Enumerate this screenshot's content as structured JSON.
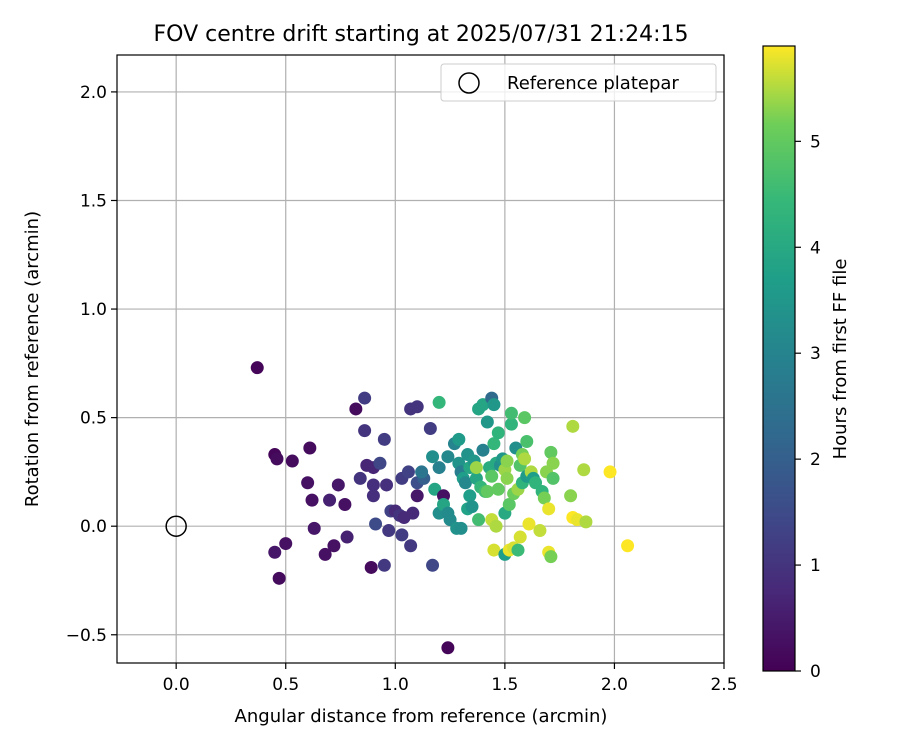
{
  "chart_data": {
    "type": "scatter",
    "title": "FOV centre drift starting at 2025/07/31 21:24:15",
    "xlabel": "Angular distance from reference (arcmin)",
    "ylabel": "Rotation from reference (arcmin)",
    "xlim": [
      -0.27,
      2.5
    ],
    "ylim": [
      -0.63,
      2.17
    ],
    "xticks": [
      0.0,
      0.5,
      1.0,
      1.5,
      2.0,
      2.5
    ],
    "xtick_labels": [
      "0.0",
      "0.5",
      "1.0",
      "1.5",
      "2.0",
      "2.5"
    ],
    "yticks": [
      -0.5,
      0.0,
      0.5,
      1.0,
      1.5,
      2.0
    ],
    "ytick_labels": [
      "−0.5",
      "0.0",
      "0.5",
      "1.0",
      "1.5",
      "2.0"
    ],
    "grid": true,
    "legend": {
      "position": "top-right",
      "entries": [
        "Reference platepar"
      ]
    },
    "reference_point": {
      "x": 0.0,
      "y": 0.0
    },
    "colorbar": {
      "label": "Hours from first FF file",
      "colormap": "viridis",
      "range": [
        0,
        5.9
      ],
      "ticks": [
        0,
        1,
        2,
        3,
        4,
        5
      ],
      "tick_labels": [
        "0",
        "1",
        "2",
        "3",
        "4",
        "5"
      ]
    },
    "points": [
      {
        "x": 0.37,
        "y": 0.73,
        "c": 0.1
      },
      {
        "x": 0.45,
        "y": 0.33,
        "c": 0.1
      },
      {
        "x": 0.46,
        "y": 0.31,
        "c": 0.2
      },
      {
        "x": 0.53,
        "y": 0.3,
        "c": 0.2
      },
      {
        "x": 0.61,
        "y": 0.36,
        "c": 0.2
      },
      {
        "x": 0.6,
        "y": 0.2,
        "c": 0.3
      },
      {
        "x": 0.62,
        "y": 0.12,
        "c": 0.3
      },
      {
        "x": 0.45,
        "y": -0.12,
        "c": 0.4
      },
      {
        "x": 0.5,
        "y": -0.08,
        "c": 0.3
      },
      {
        "x": 0.47,
        "y": -0.24,
        "c": 0.2
      },
      {
        "x": 0.63,
        "y": -0.01,
        "c": 0.4
      },
      {
        "x": 0.68,
        "y": -0.13,
        "c": 0.3
      },
      {
        "x": 0.72,
        "y": -0.09,
        "c": 0.3
      },
      {
        "x": 0.7,
        "y": 0.12,
        "c": 0.6
      },
      {
        "x": 0.74,
        "y": 0.19,
        "c": 0.4
      },
      {
        "x": 0.77,
        "y": 0.1,
        "c": 0.3
      },
      {
        "x": 0.78,
        "y": -0.05,
        "c": 0.6
      },
      {
        "x": 0.89,
        "y": -0.19,
        "c": 0.2
      },
      {
        "x": 0.82,
        "y": 0.54,
        "c": 0.2
      },
      {
        "x": 0.86,
        "y": 0.59,
        "c": 1.2
      },
      {
        "x": 0.86,
        "y": 0.44,
        "c": 1.0
      },
      {
        "x": 0.87,
        "y": 0.28,
        "c": 0.7
      },
      {
        "x": 0.84,
        "y": 0.22,
        "c": 1.0
      },
      {
        "x": 0.9,
        "y": 0.27,
        "c": 0.7
      },
      {
        "x": 0.9,
        "y": 0.19,
        "c": 0.9
      },
      {
        "x": 0.9,
        "y": 0.14,
        "c": 0.9
      },
      {
        "x": 0.91,
        "y": 0.01,
        "c": 1.5
      },
      {
        "x": 0.93,
        "y": 0.29,
        "c": 1.4
      },
      {
        "x": 0.95,
        "y": 0.4,
        "c": 1.2
      },
      {
        "x": 0.95,
        "y": -0.18,
        "c": 1.1
      },
      {
        "x": 0.96,
        "y": 0.19,
        "c": 0.9
      },
      {
        "x": 0.98,
        "y": 0.07,
        "c": 1.3
      },
      {
        "x": 1.0,
        "y": 0.07,
        "c": 0.8
      },
      {
        "x": 1.02,
        "y": 0.05,
        "c": 1.0
      },
      {
        "x": 1.03,
        "y": 0.22,
        "c": 1.2
      },
      {
        "x": 1.04,
        "y": 0.04,
        "c": 0.8
      },
      {
        "x": 1.07,
        "y": 0.54,
        "c": 1.0
      },
      {
        "x": 1.1,
        "y": 0.55,
        "c": 1.0
      },
      {
        "x": 1.07,
        "y": -0.09,
        "c": 1.1
      },
      {
        "x": 1.08,
        "y": 0.06,
        "c": 0.8
      },
      {
        "x": 1.1,
        "y": 0.14,
        "c": 0.4
      },
      {
        "x": 1.1,
        "y": 0.2,
        "c": 1.6
      },
      {
        "x": 1.13,
        "y": 0.22,
        "c": 2.0
      },
      {
        "x": 1.16,
        "y": 0.45,
        "c": 1.2
      },
      {
        "x": 1.17,
        "y": -0.18,
        "c": 1.4
      },
      {
        "x": 1.12,
        "y": 0.25,
        "c": 2.6
      },
      {
        "x": 1.17,
        "y": 0.32,
        "c": 3.3
      },
      {
        "x": 1.18,
        "y": 0.17,
        "c": 3.9
      },
      {
        "x": 1.2,
        "y": 0.27,
        "c": 2.9
      },
      {
        "x": 1.2,
        "y": 0.57,
        "c": 4.4
      },
      {
        "x": 1.2,
        "y": 0.06,
        "c": 3.3
      },
      {
        "x": 1.22,
        "y": 0.14,
        "c": 0.3
      },
      {
        "x": 1.22,
        "y": 0.1,
        "c": 3.9
      },
      {
        "x": 1.24,
        "y": 0.06,
        "c": 3.2
      },
      {
        "x": 1.24,
        "y": 0.32,
        "c": 3.1
      },
      {
        "x": 1.25,
        "y": 0.03,
        "c": 3.2
      },
      {
        "x": 1.27,
        "y": 0.38,
        "c": 3.0
      },
      {
        "x": 1.29,
        "y": 0.4,
        "c": 3.6
      },
      {
        "x": 1.29,
        "y": 0.29,
        "c": 3.4
      },
      {
        "x": 1.28,
        "y": -0.01,
        "c": 3.4
      },
      {
        "x": 1.3,
        "y": -0.01,
        "c": 3.3
      },
      {
        "x": 1.3,
        "y": 0.25,
        "c": 2.8
      },
      {
        "x": 1.31,
        "y": 0.22,
        "c": 3.7
      },
      {
        "x": 1.32,
        "y": 0.2,
        "c": 3.1
      },
      {
        "x": 1.33,
        "y": 0.33,
        "c": 3.4
      },
      {
        "x": 1.33,
        "y": 0.08,
        "c": 3.8
      },
      {
        "x": 1.34,
        "y": 0.14,
        "c": 3.7
      },
      {
        "x": 1.34,
        "y": 0.27,
        "c": 3.9
      },
      {
        "x": 1.35,
        "y": 0.09,
        "c": 3.4
      },
      {
        "x": 1.36,
        "y": 0.3,
        "c": 3.5
      },
      {
        "x": 1.37,
        "y": 0.22,
        "c": 3.9
      },
      {
        "x": 1.37,
        "y": 0.27,
        "c": 5.4
      },
      {
        "x": 1.38,
        "y": 0.54,
        "c": 3.9
      },
      {
        "x": 1.38,
        "y": 0.03,
        "c": 4.6
      },
      {
        "x": 1.39,
        "y": 0.18,
        "c": 4.4
      },
      {
        "x": 1.4,
        "y": 0.56,
        "c": 3.9
      },
      {
        "x": 1.4,
        "y": 0.35,
        "c": 2.9
      },
      {
        "x": 1.41,
        "y": 0.16,
        "c": 4.6
      },
      {
        "x": 1.42,
        "y": 0.16,
        "c": 5.0
      },
      {
        "x": 1.42,
        "y": 0.48,
        "c": 3.5
      },
      {
        "x": 1.43,
        "y": 0.27,
        "c": 4.1
      },
      {
        "x": 1.44,
        "y": 0.23,
        "c": 4.9
      },
      {
        "x": 1.44,
        "y": 0.03,
        "c": 5.6
      },
      {
        "x": 1.44,
        "y": 0.59,
        "c": 2.3
      },
      {
        "x": 1.45,
        "y": 0.38,
        "c": 4.4
      },
      {
        "x": 1.45,
        "y": -0.11,
        "c": 5.7
      },
      {
        "x": 1.45,
        "y": 0.56,
        "c": 3.5
      },
      {
        "x": 1.46,
        "y": 0.29,
        "c": 4.0
      },
      {
        "x": 1.46,
        "y": 0.0,
        "c": 5.5
      },
      {
        "x": 1.47,
        "y": 0.43,
        "c": 4.3
      },
      {
        "x": 1.47,
        "y": 0.17,
        "c": 5.0
      },
      {
        "x": 1.48,
        "y": 0.28,
        "c": 3.3
      },
      {
        "x": 1.49,
        "y": 0.31,
        "c": 3.5
      },
      {
        "x": 1.5,
        "y": -0.13,
        "c": 3.7
      },
      {
        "x": 1.5,
        "y": 0.06,
        "c": 4.0
      },
      {
        "x": 1.5,
        "y": 0.26,
        "c": 5.4
      },
      {
        "x": 1.51,
        "y": 0.22,
        "c": 5.3
      },
      {
        "x": 1.51,
        "y": 0.3,
        "c": 5.3
      },
      {
        "x": 1.52,
        "y": 0.1,
        "c": 4.9
      },
      {
        "x": 1.52,
        "y": -0.11,
        "c": 5.8
      },
      {
        "x": 1.53,
        "y": 0.47,
        "c": 4.3
      },
      {
        "x": 1.53,
        "y": 0.52,
        "c": 4.6
      },
      {
        "x": 1.54,
        "y": -0.1,
        "c": 5.7
      },
      {
        "x": 1.54,
        "y": 0.15,
        "c": 5.1
      },
      {
        "x": 1.55,
        "y": 0.36,
        "c": 3.3
      },
      {
        "x": 1.56,
        "y": -0.11,
        "c": 4.5
      },
      {
        "x": 1.56,
        "y": 0.17,
        "c": 5.4
      },
      {
        "x": 1.57,
        "y": 0.28,
        "c": 4.8
      },
      {
        "x": 1.57,
        "y": -0.05,
        "c": 5.7
      },
      {
        "x": 1.58,
        "y": 0.33,
        "c": 5.2
      },
      {
        "x": 1.58,
        "y": 0.2,
        "c": 4.3
      },
      {
        "x": 1.59,
        "y": 0.31,
        "c": 5.5
      },
      {
        "x": 1.59,
        "y": 0.5,
        "c": 4.9
      },
      {
        "x": 1.6,
        "y": 0.39,
        "c": 4.7
      },
      {
        "x": 1.6,
        "y": 0.23,
        "c": 3.6
      },
      {
        "x": 1.61,
        "y": 0.01,
        "c": 5.8
      },
      {
        "x": 1.62,
        "y": 0.25,
        "c": 5.5
      },
      {
        "x": 1.63,
        "y": 0.22,
        "c": 3.7
      },
      {
        "x": 1.64,
        "y": 0.2,
        "c": 4.3
      },
      {
        "x": 1.66,
        "y": -0.02,
        "c": 5.6
      },
      {
        "x": 1.67,
        "y": 0.16,
        "c": 4.3
      },
      {
        "x": 1.68,
        "y": 0.13,
        "c": 5.2
      },
      {
        "x": 1.69,
        "y": 0.25,
        "c": 5.3
      },
      {
        "x": 1.7,
        "y": 0.08,
        "c": 5.8
      },
      {
        "x": 1.7,
        "y": -0.12,
        "c": 5.8
      },
      {
        "x": 1.71,
        "y": -0.14,
        "c": 5.2
      },
      {
        "x": 1.71,
        "y": 0.34,
        "c": 5.0
      },
      {
        "x": 1.72,
        "y": 0.29,
        "c": 5.3
      },
      {
        "x": 1.72,
        "y": 0.22,
        "c": 4.8
      },
      {
        "x": 1.8,
        "y": 0.14,
        "c": 5.3
      },
      {
        "x": 1.81,
        "y": 0.46,
        "c": 5.5
      },
      {
        "x": 1.81,
        "y": 0.04,
        "c": 5.9
      },
      {
        "x": 1.83,
        "y": 0.03,
        "c": 5.8
      },
      {
        "x": 1.86,
        "y": 0.26,
        "c": 5.5
      },
      {
        "x": 1.87,
        "y": 0.02,
        "c": 5.5
      },
      {
        "x": 1.98,
        "y": 0.25,
        "c": 5.9
      },
      {
        "x": 2.06,
        "y": -0.09,
        "c": 5.9
      },
      {
        "x": 1.24,
        "y": -0.56,
        "c": 0.1
      },
      {
        "x": 1.03,
        "y": -0.04,
        "c": 1.2
      },
      {
        "x": 1.06,
        "y": 0.25,
        "c": 1.3
      },
      {
        "x": 0.97,
        "y": -0.02,
        "c": 1.1
      }
    ]
  }
}
